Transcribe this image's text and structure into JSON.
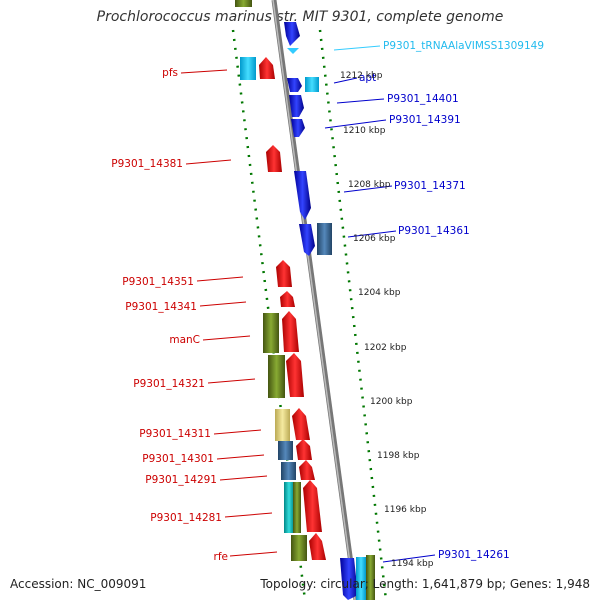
{
  "title": "Prochlorococcus marinus str. MIT 9301, complete genome",
  "accession": "Accession: NC_009091",
  "topology": "Topology: circular; Length: 1,641,879 bp; Genes: 1,948",
  "colors": {
    "forward": "#0000ee",
    "reverse": "#ee0000",
    "trna": "#33ccff",
    "gc_skew": "#007700",
    "backbone": "#888888",
    "cog_olive": "#668822",
    "cog_steel": "#4477aa",
    "cog_khaki": "#eedd88",
    "cog_cyan": "#22cccc"
  },
  "ticks": [
    {
      "label": "1212 kbp"
    },
    {
      "label": "1210 kbp"
    },
    {
      "label": "1208 kbp"
    },
    {
      "label": "1206 kbp"
    },
    {
      "label": "1204 kbp"
    },
    {
      "label": "1202 kbp"
    },
    {
      "label": "1200 kbp"
    },
    {
      "label": "1198 kbp"
    },
    {
      "label": "1196 kbp"
    },
    {
      "label": "1194 kbp"
    }
  ],
  "forward_labels": [
    {
      "label": "P9301_tRNAAlaVIMSS1309149",
      "trna": true
    },
    {
      "label": "apt"
    },
    {
      "label": "P9301_14401"
    },
    {
      "label": "P9301_14391"
    },
    {
      "label": "P9301_14371"
    },
    {
      "label": "P9301_14361"
    },
    {
      "label": "P9301_14261"
    }
  ],
  "reverse_labels": [
    {
      "label": "pfs"
    },
    {
      "label": "P9301_14381"
    },
    {
      "label": "P9301_14351"
    },
    {
      "label": "P9301_14341"
    },
    {
      "label": "manC"
    },
    {
      "label": "P9301_14321"
    },
    {
      "label": "P9301_14311"
    },
    {
      "label": "P9301_14301"
    },
    {
      "label": "P9301_14291"
    },
    {
      "label": "P9301_14281"
    },
    {
      "label": "rfe"
    }
  ]
}
